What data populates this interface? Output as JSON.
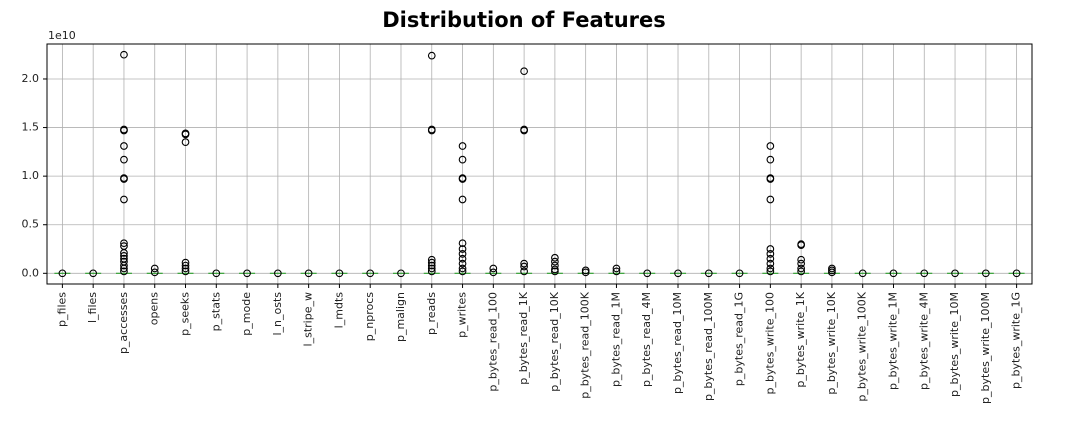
{
  "chart_data": {
    "type": "boxplot",
    "title": "Distribution of Features",
    "y_offset_label": "1e10",
    "categories": [
      "p_files",
      "l_files",
      "p_accesses",
      "opens",
      "p_seeks",
      "p_stats",
      "p_mode",
      "l_n_osts",
      "l_stripe_w",
      "l_mdts",
      "p_nprocs",
      "p_malign",
      "p_reads",
      "p_writes",
      "p_bytes_read_100",
      "p_bytes_read_1K",
      "p_bytes_read_10K",
      "p_bytes_read_100K",
      "p_bytes_read_1M",
      "p_bytes_read_4M",
      "p_bytes_read_10M",
      "p_bytes_read_100M",
      "p_bytes_read_1G",
      "p_bytes_write_100",
      "p_bytes_write_1K",
      "p_bytes_write_10K",
      "p_bytes_write_100K",
      "p_bytes_write_1M",
      "p_bytes_write_4M",
      "p_bytes_write_10M",
      "p_bytes_write_100M",
      "p_bytes_write_1G"
    ],
    "medians": [
      0,
      0,
      0,
      0,
      0,
      0,
      0,
      0,
      0,
      0,
      0,
      0,
      0,
      0,
      0,
      0,
      0,
      0,
      0,
      0,
      0,
      0,
      0,
      0,
      0,
      0,
      0,
      0,
      0,
      0,
      0,
      0
    ],
    "outliers": [
      [
        0
      ],
      [
        0
      ],
      [
        2.25,
        1.48,
        1.47,
        1.31,
        1.17,
        0.98,
        0.97,
        0.76,
        0.31,
        0.28,
        0.21,
        0.18,
        0.15,
        0.12,
        0.08,
        0.05,
        0.02
      ],
      [
        0.05,
        0.01
      ],
      [
        1.44,
        1.43,
        1.35,
        0.11,
        0.08,
        0.05,
        0.02
      ],
      [
        0
      ],
      [
        0
      ],
      [
        0
      ],
      [
        0
      ],
      [
        0
      ],
      [
        0
      ],
      [
        0
      ],
      [
        2.24,
        1.48,
        1.47,
        0.14,
        0.11,
        0.08,
        0.05,
        0.02
      ],
      [
        1.31,
        1.17,
        0.98,
        0.97,
        0.76,
        0.31,
        0.25,
        0.2,
        0.15,
        0.1,
        0.05,
        0.02
      ],
      [
        0.05,
        0.01
      ],
      [
        2.08,
        1.48,
        1.47,
        0.1,
        0.07,
        0.02
      ],
      [
        0.16,
        0.12,
        0.08,
        0.04,
        0.02
      ],
      [
        0.03,
        0.01
      ],
      [
        0.05,
        0.02
      ],
      [
        0
      ],
      [
        0
      ],
      [
        0
      ],
      [
        0
      ],
      [
        1.31,
        1.17,
        0.98,
        0.97,
        0.76,
        0.25,
        0.2,
        0.15,
        0.1,
        0.05,
        0.02
      ],
      [
        0.3,
        0.29,
        0.14,
        0.1,
        0.05,
        0.02
      ],
      [
        0.05,
        0.03,
        0.01
      ],
      [
        0
      ],
      [
        0
      ],
      [
        0
      ],
      [
        0
      ],
      [
        0
      ],
      [
        0
      ]
    ],
    "ylim": [
      -0.11,
      2.36
    ],
    "yticks": [
      {
        "value": 0,
        "label": "0.0"
      },
      {
        "value": 0.5,
        "label": "0.5"
      },
      {
        "value": 1,
        "label": "1.0"
      },
      {
        "value": 1.5,
        "label": "1.5"
      },
      {
        "value": 2,
        "label": "2.0"
      }
    ],
    "grid": true,
    "box_color": "#000000",
    "median_color": "#2ca02c"
  }
}
